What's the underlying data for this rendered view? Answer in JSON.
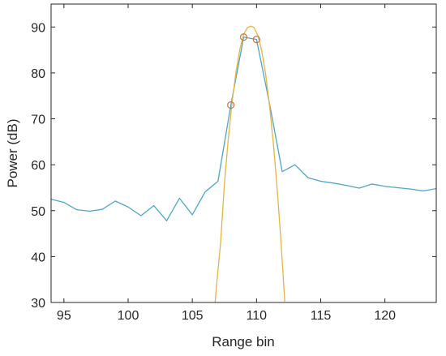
{
  "chart_data": {
    "type": "line",
    "xlabel": "Range bin",
    "ylabel": "Power (dB)",
    "xlim": [
      94,
      124
    ],
    "ylim": [
      30,
      95
    ],
    "xticks": [
      95,
      100,
      105,
      110,
      115,
      120
    ],
    "yticks": [
      30,
      40,
      50,
      60,
      70,
      80,
      90
    ],
    "grid": false,
    "series": [
      {
        "color": "#4da6c8",
        "style": "line",
        "x": [
          94,
          95,
          96,
          97,
          98,
          99,
          100,
          101,
          102,
          103,
          104,
          105,
          106,
          107,
          108,
          109,
          110,
          111,
          112,
          113,
          114,
          115,
          116,
          117,
          118,
          119,
          120,
          121,
          122,
          123,
          124
        ],
        "y": [
          52.5,
          51.8,
          50.2,
          49.9,
          50.3,
          52.1,
          50.8,
          48.9,
          51.1,
          47.8,
          52.7,
          49.1,
          54.1,
          56.4,
          73.0,
          87.8,
          87.3,
          73.5,
          58.5,
          60.0,
          57.2,
          56.4,
          56.0,
          55.5,
          54.9,
          55.8,
          55.3,
          55.0,
          54.7,
          54.3,
          54.8
        ]
      },
      {
        "color": "#e6b443",
        "style": "line",
        "x": [
          106.6,
          106.9,
          107.2,
          107.5,
          107.8,
          108.1,
          108.4,
          108.7,
          109.0,
          109.3,
          109.55,
          109.8,
          110.1,
          110.4,
          110.7,
          111.0,
          111.3,
          111.6,
          111.9,
          112.2
        ],
        "y": [
          24.1,
          34.1,
          42.9,
          55.9,
          65.6,
          73.7,
          80.2,
          85.1,
          88.4,
          89.9,
          90.2,
          89.9,
          88.2,
          84.9,
          79.9,
          73.2,
          65.0,
          55.1,
          43.5,
          30.2
        ]
      },
      {
        "color": "#c8734c",
        "style": "markers",
        "x": [
          108,
          109,
          110
        ],
        "y": [
          73.0,
          87.8,
          87.3
        ]
      }
    ]
  }
}
